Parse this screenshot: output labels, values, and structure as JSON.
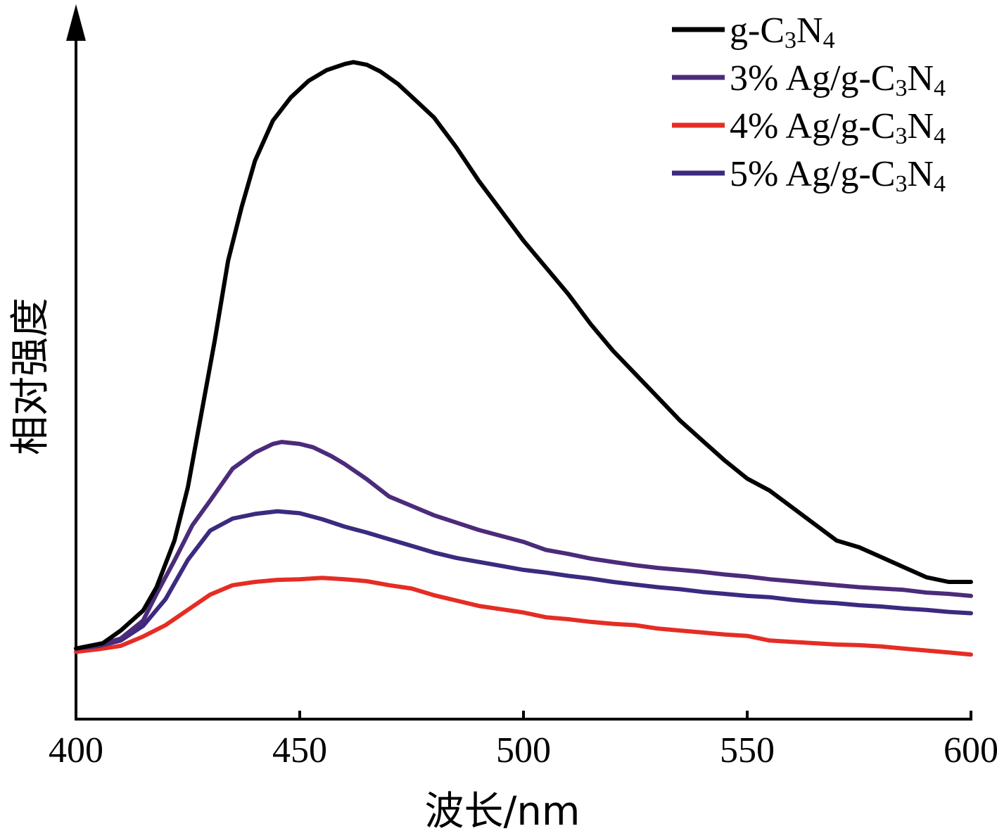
{
  "chart_data": {
    "type": "line",
    "title": "",
    "xlabel": "波长/nm",
    "ylabel": "相对强度",
    "xlim": [
      400,
      600
    ],
    "ylim": [
      0,
      100
    ],
    "x_ticks": [
      "400",
      "450",
      "500",
      "550",
      "600"
    ],
    "y_ticks": [],
    "grid": false,
    "legend_position": "top-right",
    "series": [
      {
        "name": "g-C3N4",
        "legend": {
          "pre": "g-C",
          "sub1": "3",
          "mid": "N",
          "sub2": "4"
        },
        "color": "#000000",
        "points": [
          [
            400,
            8.8
          ],
          [
            406,
            9.6
          ],
          [
            410,
            11.5
          ],
          [
            415,
            14.5
          ],
          [
            418,
            18
          ],
          [
            422,
            25
          ],
          [
            425,
            33
          ],
          [
            428,
            44
          ],
          [
            431,
            55
          ],
          [
            434,
            67
          ],
          [
            437,
            75
          ],
          [
            440,
            82
          ],
          [
            444,
            88
          ],
          [
            448,
            91.5
          ],
          [
            452,
            94
          ],
          [
            456,
            95.6
          ],
          [
            460,
            96.5
          ],
          [
            462,
            96.8
          ],
          [
            465,
            96.4
          ],
          [
            468,
            95.4
          ],
          [
            472,
            93.5
          ],
          [
            476,
            91
          ],
          [
            480,
            88.5
          ],
          [
            485,
            84
          ],
          [
            490,
            79
          ],
          [
            495,
            74.5
          ],
          [
            500,
            70
          ],
          [
            505,
            66
          ],
          [
            510,
            62
          ],
          [
            515,
            57.5
          ],
          [
            520,
            53.5
          ],
          [
            525,
            50
          ],
          [
            530,
            46.5
          ],
          [
            535,
            43
          ],
          [
            540,
            40
          ],
          [
            545,
            37
          ],
          [
            550,
            34.3
          ],
          [
            555,
            32.5
          ],
          [
            560,
            30
          ],
          [
            565,
            27.5
          ],
          [
            570,
            25
          ],
          [
            575,
            24
          ],
          [
            580,
            22.5
          ],
          [
            585,
            21
          ],
          [
            590,
            19.5
          ],
          [
            595,
            18.8
          ],
          [
            600,
            18.8
          ]
        ]
      },
      {
        "name": "3% Ag/g-C3N4",
        "legend": {
          "pre": "3% Ag/g-C",
          "sub1": "3",
          "mid": "N",
          "sub2": "4"
        },
        "color": "#4b2b7a",
        "points": [
          [
            400,
            8.8
          ],
          [
            405,
            9.3
          ],
          [
            410,
            10.3
          ],
          [
            415,
            13
          ],
          [
            418,
            17
          ],
          [
            422,
            22
          ],
          [
            426,
            27.3
          ],
          [
            430,
            31
          ],
          [
            435,
            35.8
          ],
          [
            440,
            38.2
          ],
          [
            444,
            39.5
          ],
          [
            446,
            39.8
          ],
          [
            450,
            39.5
          ],
          [
            453,
            39
          ],
          [
            457,
            37.7
          ],
          [
            460,
            36.5
          ],
          [
            465,
            34.2
          ],
          [
            470,
            31.6
          ],
          [
            475,
            30.2
          ],
          [
            480,
            28.8
          ],
          [
            485,
            27.7
          ],
          [
            490,
            26.6
          ],
          [
            495,
            25.7
          ],
          [
            500,
            24.8
          ],
          [
            505,
            23.6
          ],
          [
            510,
            23
          ],
          [
            515,
            22.3
          ],
          [
            520,
            21.8
          ],
          [
            525,
            21.3
          ],
          [
            530,
            20.9
          ],
          [
            535,
            20.6
          ],
          [
            540,
            20.3
          ],
          [
            545,
            19.9
          ],
          [
            550,
            19.6
          ],
          [
            555,
            19.2
          ],
          [
            560,
            18.9
          ],
          [
            565,
            18.6
          ],
          [
            570,
            18.3
          ],
          [
            575,
            18
          ],
          [
            580,
            17.8
          ],
          [
            585,
            17.6
          ],
          [
            590,
            17.2
          ],
          [
            595,
            17
          ],
          [
            600,
            16.7
          ]
        ]
      },
      {
        "name": "4% Ag/g-C3N4",
        "legend": {
          "pre": "4% Ag/g-C",
          "sub1": "3",
          "mid": "N",
          "sub2": "4"
        },
        "color": "#e52d24",
        "points": [
          [
            400,
            8.3
          ],
          [
            405,
            8.7
          ],
          [
            410,
            9.2
          ],
          [
            415,
            10.6
          ],
          [
            420,
            12.3
          ],
          [
            425,
            14.6
          ],
          [
            430,
            16.9
          ],
          [
            435,
            18.3
          ],
          [
            440,
            18.8
          ],
          [
            445,
            19.1
          ],
          [
            450,
            19.2
          ],
          [
            455,
            19.4
          ],
          [
            460,
            19.2
          ],
          [
            465,
            18.9
          ],
          [
            470,
            18.3
          ],
          [
            475,
            17.8
          ],
          [
            480,
            16.8
          ],
          [
            485,
            16
          ],
          [
            490,
            15.2
          ],
          [
            495,
            14.7
          ],
          [
            500,
            14.2
          ],
          [
            505,
            13.5
          ],
          [
            510,
            13.2
          ],
          [
            515,
            12.8
          ],
          [
            520,
            12.5
          ],
          [
            525,
            12.3
          ],
          [
            530,
            11.8
          ],
          [
            535,
            11.5
          ],
          [
            540,
            11.2
          ],
          [
            545,
            10.9
          ],
          [
            550,
            10.7
          ],
          [
            555,
            10
          ],
          [
            560,
            9.8
          ],
          [
            565,
            9.6
          ],
          [
            570,
            9.4
          ],
          [
            575,
            9.3
          ],
          [
            580,
            9.1
          ],
          [
            585,
            8.8
          ],
          [
            590,
            8.5
          ],
          [
            595,
            8.2
          ],
          [
            600,
            7.9
          ]
        ]
      },
      {
        "name": "5% Ag/g-C3N4",
        "legend": {
          "pre": "5% Ag/g-C",
          "sub1": "3",
          "mid": "N",
          "sub2": "4"
        },
        "color": "#3c2a80",
        "points": [
          [
            400,
            8.8
          ],
          [
            405,
            9.2
          ],
          [
            410,
            10
          ],
          [
            415,
            12.2
          ],
          [
            420,
            16.2
          ],
          [
            425,
            22.1
          ],
          [
            430,
            26.5
          ],
          [
            435,
            28.3
          ],
          [
            440,
            29
          ],
          [
            445,
            29.4
          ],
          [
            450,
            29.1
          ],
          [
            455,
            28.2
          ],
          [
            460,
            27.1
          ],
          [
            465,
            26.2
          ],
          [
            470,
            25.2
          ],
          [
            475,
            24.2
          ],
          [
            480,
            23.2
          ],
          [
            485,
            22.4
          ],
          [
            490,
            21.8
          ],
          [
            495,
            21.2
          ],
          [
            500,
            20.6
          ],
          [
            505,
            20.2
          ],
          [
            510,
            19.7
          ],
          [
            515,
            19.3
          ],
          [
            520,
            18.8
          ],
          [
            525,
            18.4
          ],
          [
            530,
            18
          ],
          [
            535,
            17.7
          ],
          [
            540,
            17.3
          ],
          [
            545,
            17
          ],
          [
            550,
            16.7
          ],
          [
            555,
            16.5
          ],
          [
            560,
            16.1
          ],
          [
            565,
            15.8
          ],
          [
            570,
            15.6
          ],
          [
            575,
            15.3
          ],
          [
            580,
            15.1
          ],
          [
            585,
            14.8
          ],
          [
            590,
            14.6
          ],
          [
            595,
            14.3
          ],
          [
            600,
            14.1
          ]
        ]
      }
    ]
  }
}
